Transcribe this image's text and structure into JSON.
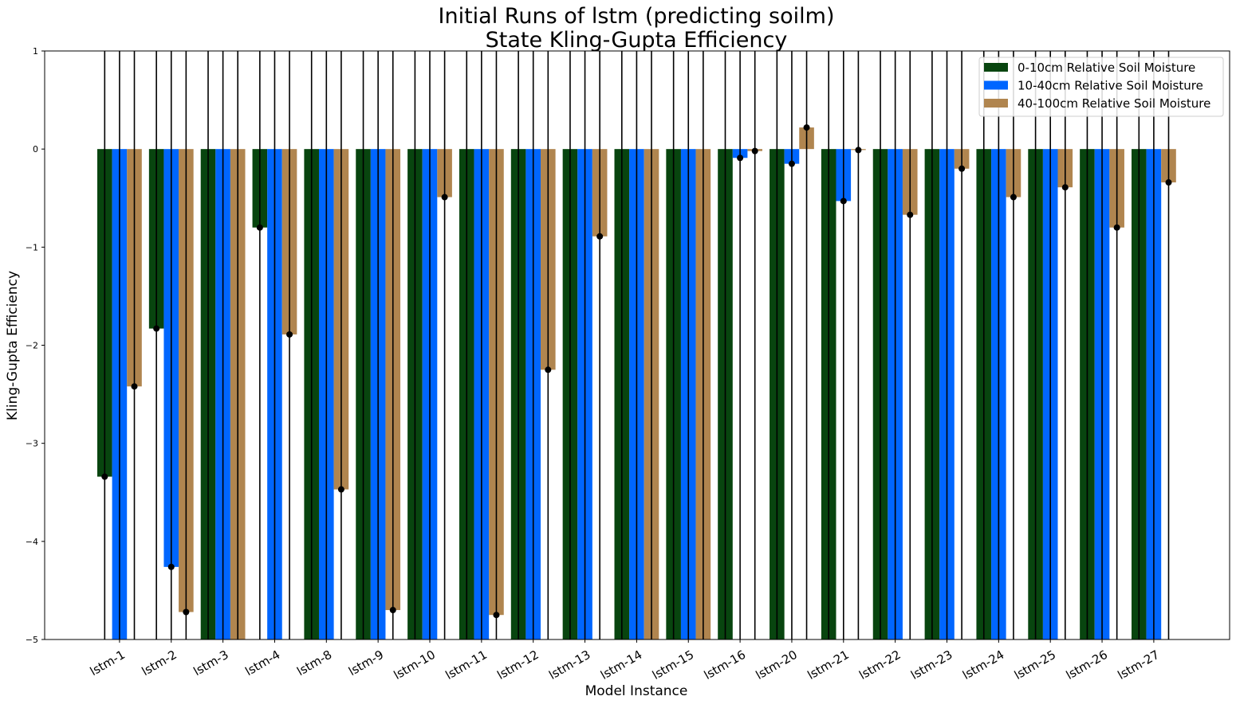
{
  "chart_data": {
    "type": "bar",
    "title": "Initial Runs of lstm (predicting soilm)",
    "subtitle": "State Kling-Gupta Efficiency",
    "xlabel": "Model Instance",
    "ylabel": "Kling-Gupta Efficiency",
    "ylim": [
      -5,
      1
    ],
    "yticks": [
      1,
      0,
      -1,
      -2,
      -3,
      -4,
      -5
    ],
    "ytick_labels": [
      "1",
      "0",
      "−1",
      "−2",
      "−3",
      "−4",
      "−5"
    ],
    "grid": false,
    "legend_position": "top-right",
    "categories": [
      "lstm-1",
      "lstm-2",
      "lstm-3",
      "lstm-4",
      "lstm-8",
      "lstm-9",
      "lstm-10",
      "lstm-11",
      "lstm-12",
      "lstm-13",
      "lstm-14",
      "lstm-15",
      "lstm-16",
      "lstm-20",
      "lstm-21",
      "lstm-22",
      "lstm-23",
      "lstm-24",
      "lstm-25",
      "lstm-26",
      "lstm-27"
    ],
    "series": [
      {
        "name": "0-10cm Relative Soil Moisture",
        "color": "#08450f",
        "values": [
          -3.34,
          -1.83,
          -5.0,
          -0.8,
          -5.0,
          -5.0,
          -5.0,
          -5.0,
          -5.0,
          -5.0,
          -5.0,
          -5.0,
          -5.0,
          -5.0,
          -5.0,
          -5.0,
          -5.0,
          -5.0,
          -5.0,
          -5.0,
          -5.0
        ]
      },
      {
        "name": "10-40cm Relative Soil Moisture",
        "color": "#0066ff",
        "values": [
          -5.0,
          -4.26,
          -5.0,
          -5.0,
          -5.0,
          -5.0,
          -5.0,
          -5.0,
          -5.0,
          -5.0,
          -5.0,
          -5.0,
          -0.09,
          -0.15,
          -0.53,
          -5.0,
          -5.0,
          -5.0,
          -5.0,
          -5.0,
          -5.0
        ]
      },
      {
        "name": "40-100cm Relative Soil Moisture",
        "color": "#b0854f",
        "values": [
          -2.42,
          -4.72,
          -5.0,
          -1.89,
          -3.47,
          -4.7,
          -0.49,
          -4.75,
          -2.25,
          -0.89,
          -5.0,
          -5.0,
          -0.02,
          0.22,
          -0.01,
          -0.67,
          -0.2,
          -0.49,
          -0.39,
          -0.8,
          -0.34
        ]
      }
    ]
  }
}
